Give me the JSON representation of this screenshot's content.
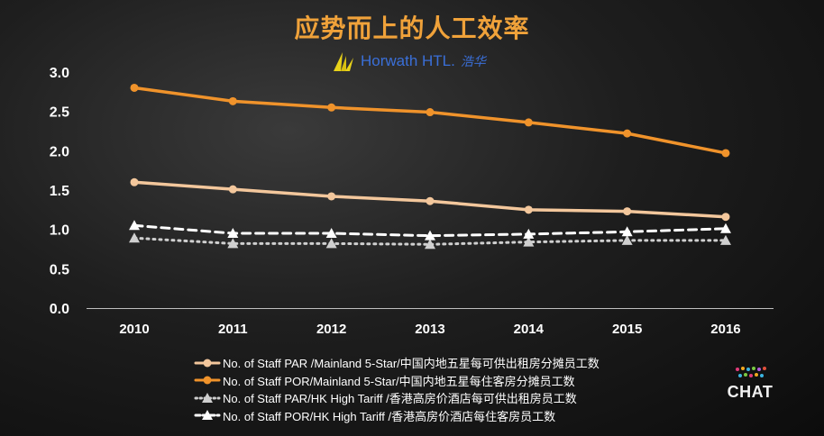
{
  "page": {
    "title": "应势而上的人工效率",
    "logo_text": "Horwath HTL.",
    "logo_cn": "浩华",
    "brand_text": "CHAT"
  },
  "chart_data": {
    "type": "line",
    "title": "应势而上的人工效率",
    "x": [
      "2010",
      "2011",
      "2012",
      "2013",
      "2014",
      "2015",
      "2016"
    ],
    "ylim": [
      0,
      3.0
    ],
    "yticks": [
      "0.0",
      "0.5",
      "1.0",
      "1.5",
      "2.0",
      "2.5",
      "3.0"
    ],
    "grid": false,
    "legend_position": "bottom",
    "series": [
      {
        "name": "No. of Staff PAR /Mainland 5-Star/中国内地五星每可供出租房分摊员工数",
        "color": "#f3c79c",
        "style": "solid",
        "marker": "circle",
        "values": [
          1.6,
          1.51,
          1.42,
          1.36,
          1.25,
          1.23,
          1.16
        ]
      },
      {
        "name": "No. of Staff POR/Mainland 5-Star/中国内地五星每住客房分摊员工数",
        "color": "#f0932b",
        "style": "solid",
        "marker": "circle",
        "values": [
          2.8,
          2.63,
          2.55,
          2.49,
          2.36,
          2.22,
          1.97
        ]
      },
      {
        "name": "No. of Staff PAR/HK High Tariff /香港高房价酒店每可供出租房员工数",
        "color": "#cfcfcf",
        "style": "dotted",
        "marker": "triangle",
        "values": [
          0.89,
          0.82,
          0.82,
          0.81,
          0.84,
          0.86,
          0.86
        ]
      },
      {
        "name": "No. of Staff POR/HK High Tariff /香港高房价酒店每住客房员工数",
        "color": "#ffffff",
        "style": "dashed",
        "marker": "triangle",
        "values": [
          1.05,
          0.95,
          0.95,
          0.92,
          0.94,
          0.97,
          1.01
        ]
      }
    ]
  }
}
